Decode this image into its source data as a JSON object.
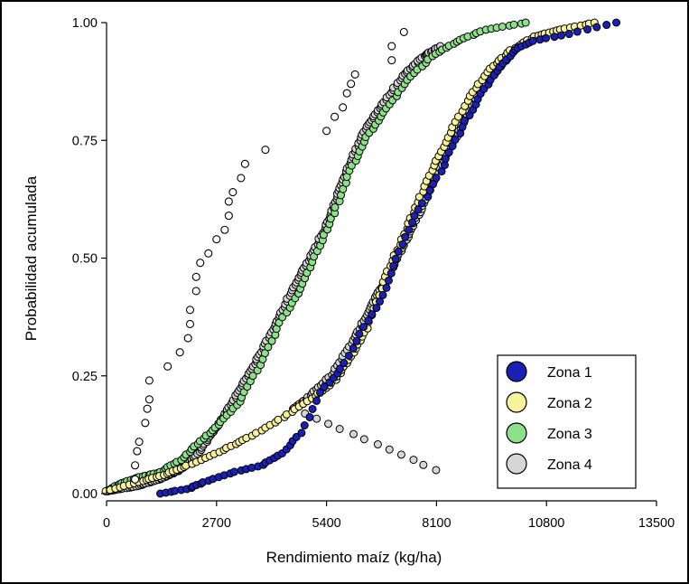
{
  "colors": {
    "zona1": "#1c1fb4",
    "zona2": "#f7f29c",
    "zona3": "#8de08a",
    "zona4": "#d6d6d6",
    "outline": "#000000"
  },
  "chart_data": {
    "type": "scatter",
    "title": "",
    "xlabel": "Rendimiento maíz (kg/ha)",
    "ylabel": "Probabilidad acumulada",
    "xlim": [
      0,
      13500
    ],
    "ylim": [
      0,
      1
    ],
    "x_ticks": [
      0,
      2700,
      5400,
      8100,
      10800,
      13500
    ],
    "x_tick_labels": [
      "0",
      "2700",
      "5400",
      "8100",
      "10800",
      "13500"
    ],
    "y_ticks": [
      0,
      0.25,
      0.5,
      0.75,
      1
    ],
    "y_tick_labels": [
      "0.00",
      "0.25",
      "0.50",
      "0.75",
      "1.00"
    ],
    "grid": false,
    "legend": {
      "position": "bottom-right",
      "entries": [
        "Zona 1",
        "Zona 2",
        "Zona 3",
        "Zona 4"
      ]
    },
    "note": "Empirical cumulative distribution curves; each series lists (yield kg/ha, cumulative probability) anchor points read from the figure and plotted as dense point clouds.",
    "series": [
      {
        "name": "Zona 1",
        "color": "#1c1fb4",
        "points": 110,
        "curve": [
          [
            1300,
            0
          ],
          [
            2000,
            0.01
          ],
          [
            2400,
            0.025
          ],
          [
            3100,
            0.045
          ],
          [
            3800,
            0.06
          ],
          [
            4300,
            0.085
          ],
          [
            4800,
            0.13
          ],
          [
            5300,
            0.22
          ],
          [
            5800,
            0.27
          ],
          [
            6300,
            0.35
          ],
          [
            6800,
            0.42
          ],
          [
            7100,
            0.5
          ],
          [
            7500,
            0.58
          ],
          [
            8000,
            0.65
          ],
          [
            8400,
            0.72
          ],
          [
            8800,
            0.79
          ],
          [
            9200,
            0.85
          ],
          [
            9600,
            0.9
          ],
          [
            10000,
            0.94
          ],
          [
            10400,
            0.96
          ],
          [
            11300,
            0.975
          ],
          [
            12500,
            1
          ]
        ]
      },
      {
        "name": "Zona 2",
        "color": "#f7f29c",
        "points": 150,
        "curve": [
          [
            0,
            0.005
          ],
          [
            800,
            0.025
          ],
          [
            1400,
            0.04
          ],
          [
            2000,
            0.06
          ],
          [
            2800,
            0.09
          ],
          [
            3500,
            0.12
          ],
          [
            4300,
            0.16
          ],
          [
            5000,
            0.2
          ],
          [
            5600,
            0.24
          ],
          [
            6000,
            0.29
          ],
          [
            6400,
            0.35
          ],
          [
            6800,
            0.45
          ],
          [
            7200,
            0.53
          ],
          [
            7600,
            0.61
          ],
          [
            8000,
            0.69
          ],
          [
            8400,
            0.76
          ],
          [
            8900,
            0.84
          ],
          [
            9400,
            0.9
          ],
          [
            9900,
            0.94
          ],
          [
            10500,
            0.97
          ],
          [
            11100,
            0.985
          ],
          [
            12000,
            1
          ]
        ]
      },
      {
        "name": "Zona 3",
        "color": "#8de08a",
        "points": 140,
        "curve": [
          [
            0,
            0.005
          ],
          [
            300,
            0.02
          ],
          [
            800,
            0.035
          ],
          [
            1300,
            0.045
          ],
          [
            1800,
            0.07
          ],
          [
            2300,
            0.11
          ],
          [
            2800,
            0.15
          ],
          [
            3300,
            0.2
          ],
          [
            3800,
            0.28
          ],
          [
            4300,
            0.37
          ],
          [
            4800,
            0.44
          ],
          [
            5200,
            0.52
          ],
          [
            5600,
            0.6
          ],
          [
            6000,
            0.69
          ],
          [
            6400,
            0.76
          ],
          [
            6900,
            0.82
          ],
          [
            7400,
            0.88
          ],
          [
            8000,
            0.93
          ],
          [
            8600,
            0.96
          ],
          [
            9300,
            0.985
          ],
          [
            10300,
            1
          ]
        ]
      },
      {
        "name": "Zona 4",
        "color": "#d6d6d6",
        "points": 380,
        "curve": [
          [
            0,
            0.005
          ],
          [
            700,
            0.015
          ],
          [
            1300,
            0.03
          ],
          [
            1800,
            0.05
          ],
          [
            2200,
            0.08
          ],
          [
            2600,
            0.13
          ],
          [
            3000,
            0.18
          ],
          [
            3400,
            0.24
          ],
          [
            3800,
            0.3
          ],
          [
            4200,
            0.37
          ],
          [
            4600,
            0.44
          ],
          [
            5000,
            0.5
          ],
          [
            5400,
            0.57
          ],
          [
            5700,
            0.64
          ],
          [
            6000,
            0.71
          ],
          [
            6400,
            0.78
          ],
          [
            6800,
            0.83
          ],
          [
            7300,
            0.89
          ],
          [
            7800,
            0.93
          ],
          [
            8200,
            0.95
          ],
          [
            8100,
            0.05
          ],
          [
            4600,
            0.18
          ],
          [
            4900,
            0.2
          ],
          [
            5500,
            0.25
          ],
          [
            6100,
            0.33
          ],
          [
            6500,
            0.4
          ],
          [
            6900,
            0.46
          ],
          [
            7300,
            0.53
          ],
          [
            7700,
            0.6
          ],
          [
            8100,
            0.68
          ],
          [
            8600,
            0.76
          ],
          [
            9000,
            0.83
          ],
          [
            9500,
            0.89
          ],
          [
            10000,
            0.94
          ]
        ]
      },
      {
        "name": "Zona 4 (open circles)",
        "color": "#ffffff",
        "points": 40,
        "curve": [
          [
            700,
            0.03
          ],
          [
            700,
            0.06
          ],
          [
            750,
            0.09
          ],
          [
            800,
            0.11
          ],
          [
            950,
            0.15
          ],
          [
            1000,
            0.18
          ],
          [
            1050,
            0.2
          ],
          [
            1050,
            0.24
          ],
          [
            1500,
            0.27
          ],
          [
            1800,
            0.3
          ],
          [
            2000,
            0.33
          ],
          [
            2050,
            0.36
          ],
          [
            2050,
            0.39
          ],
          [
            2200,
            0.43
          ],
          [
            2200,
            0.46
          ],
          [
            2300,
            0.49
          ],
          [
            2500,
            0.51
          ],
          [
            2700,
            0.54
          ],
          [
            2900,
            0.56
          ],
          [
            3000,
            0.59
          ],
          [
            3000,
            0.62
          ],
          [
            3100,
            0.64
          ],
          [
            3300,
            0.67
          ],
          [
            3400,
            0.7
          ],
          [
            3900,
            0.73
          ],
          [
            5400,
            0.77
          ],
          [
            5600,
            0.8
          ],
          [
            5800,
            0.82
          ],
          [
            5900,
            0.85
          ],
          [
            6000,
            0.87
          ],
          [
            6100,
            0.89
          ],
          [
            7000,
            0.92
          ],
          [
            7000,
            0.95
          ],
          [
            7300,
            0.98
          ]
        ]
      }
    ]
  }
}
